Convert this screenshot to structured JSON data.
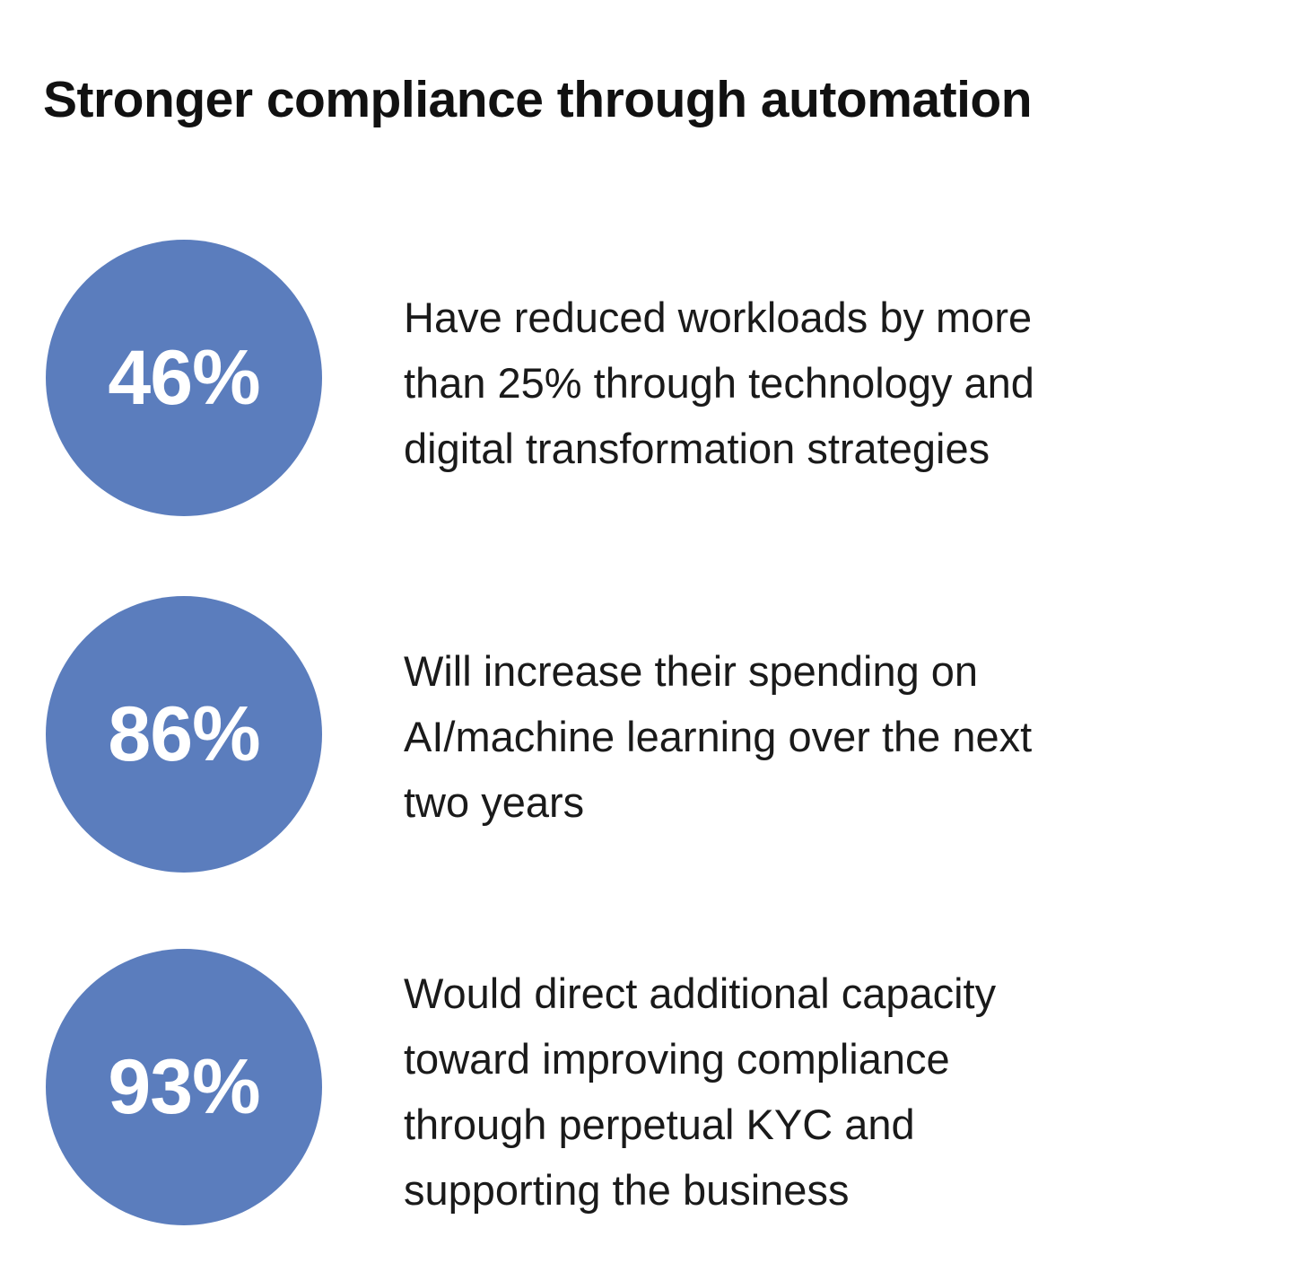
{
  "title": "Stronger compliance through automation",
  "accent_color": "#5b7dbd",
  "stats": [
    {
      "value": "46%",
      "lines": [
        "Have reduced workloads by more",
        "than 25% through technology and",
        "digital transformation strategies"
      ]
    },
    {
      "value": "86%",
      "lines": [
        "Will increase their spending on",
        "AI/machine learning over the next",
        "two years"
      ]
    },
    {
      "value": "93%",
      "lines": [
        "Would direct additional capacity",
        "toward improving compliance",
        "through perpetual KYC and",
        "supporting the business"
      ]
    }
  ]
}
